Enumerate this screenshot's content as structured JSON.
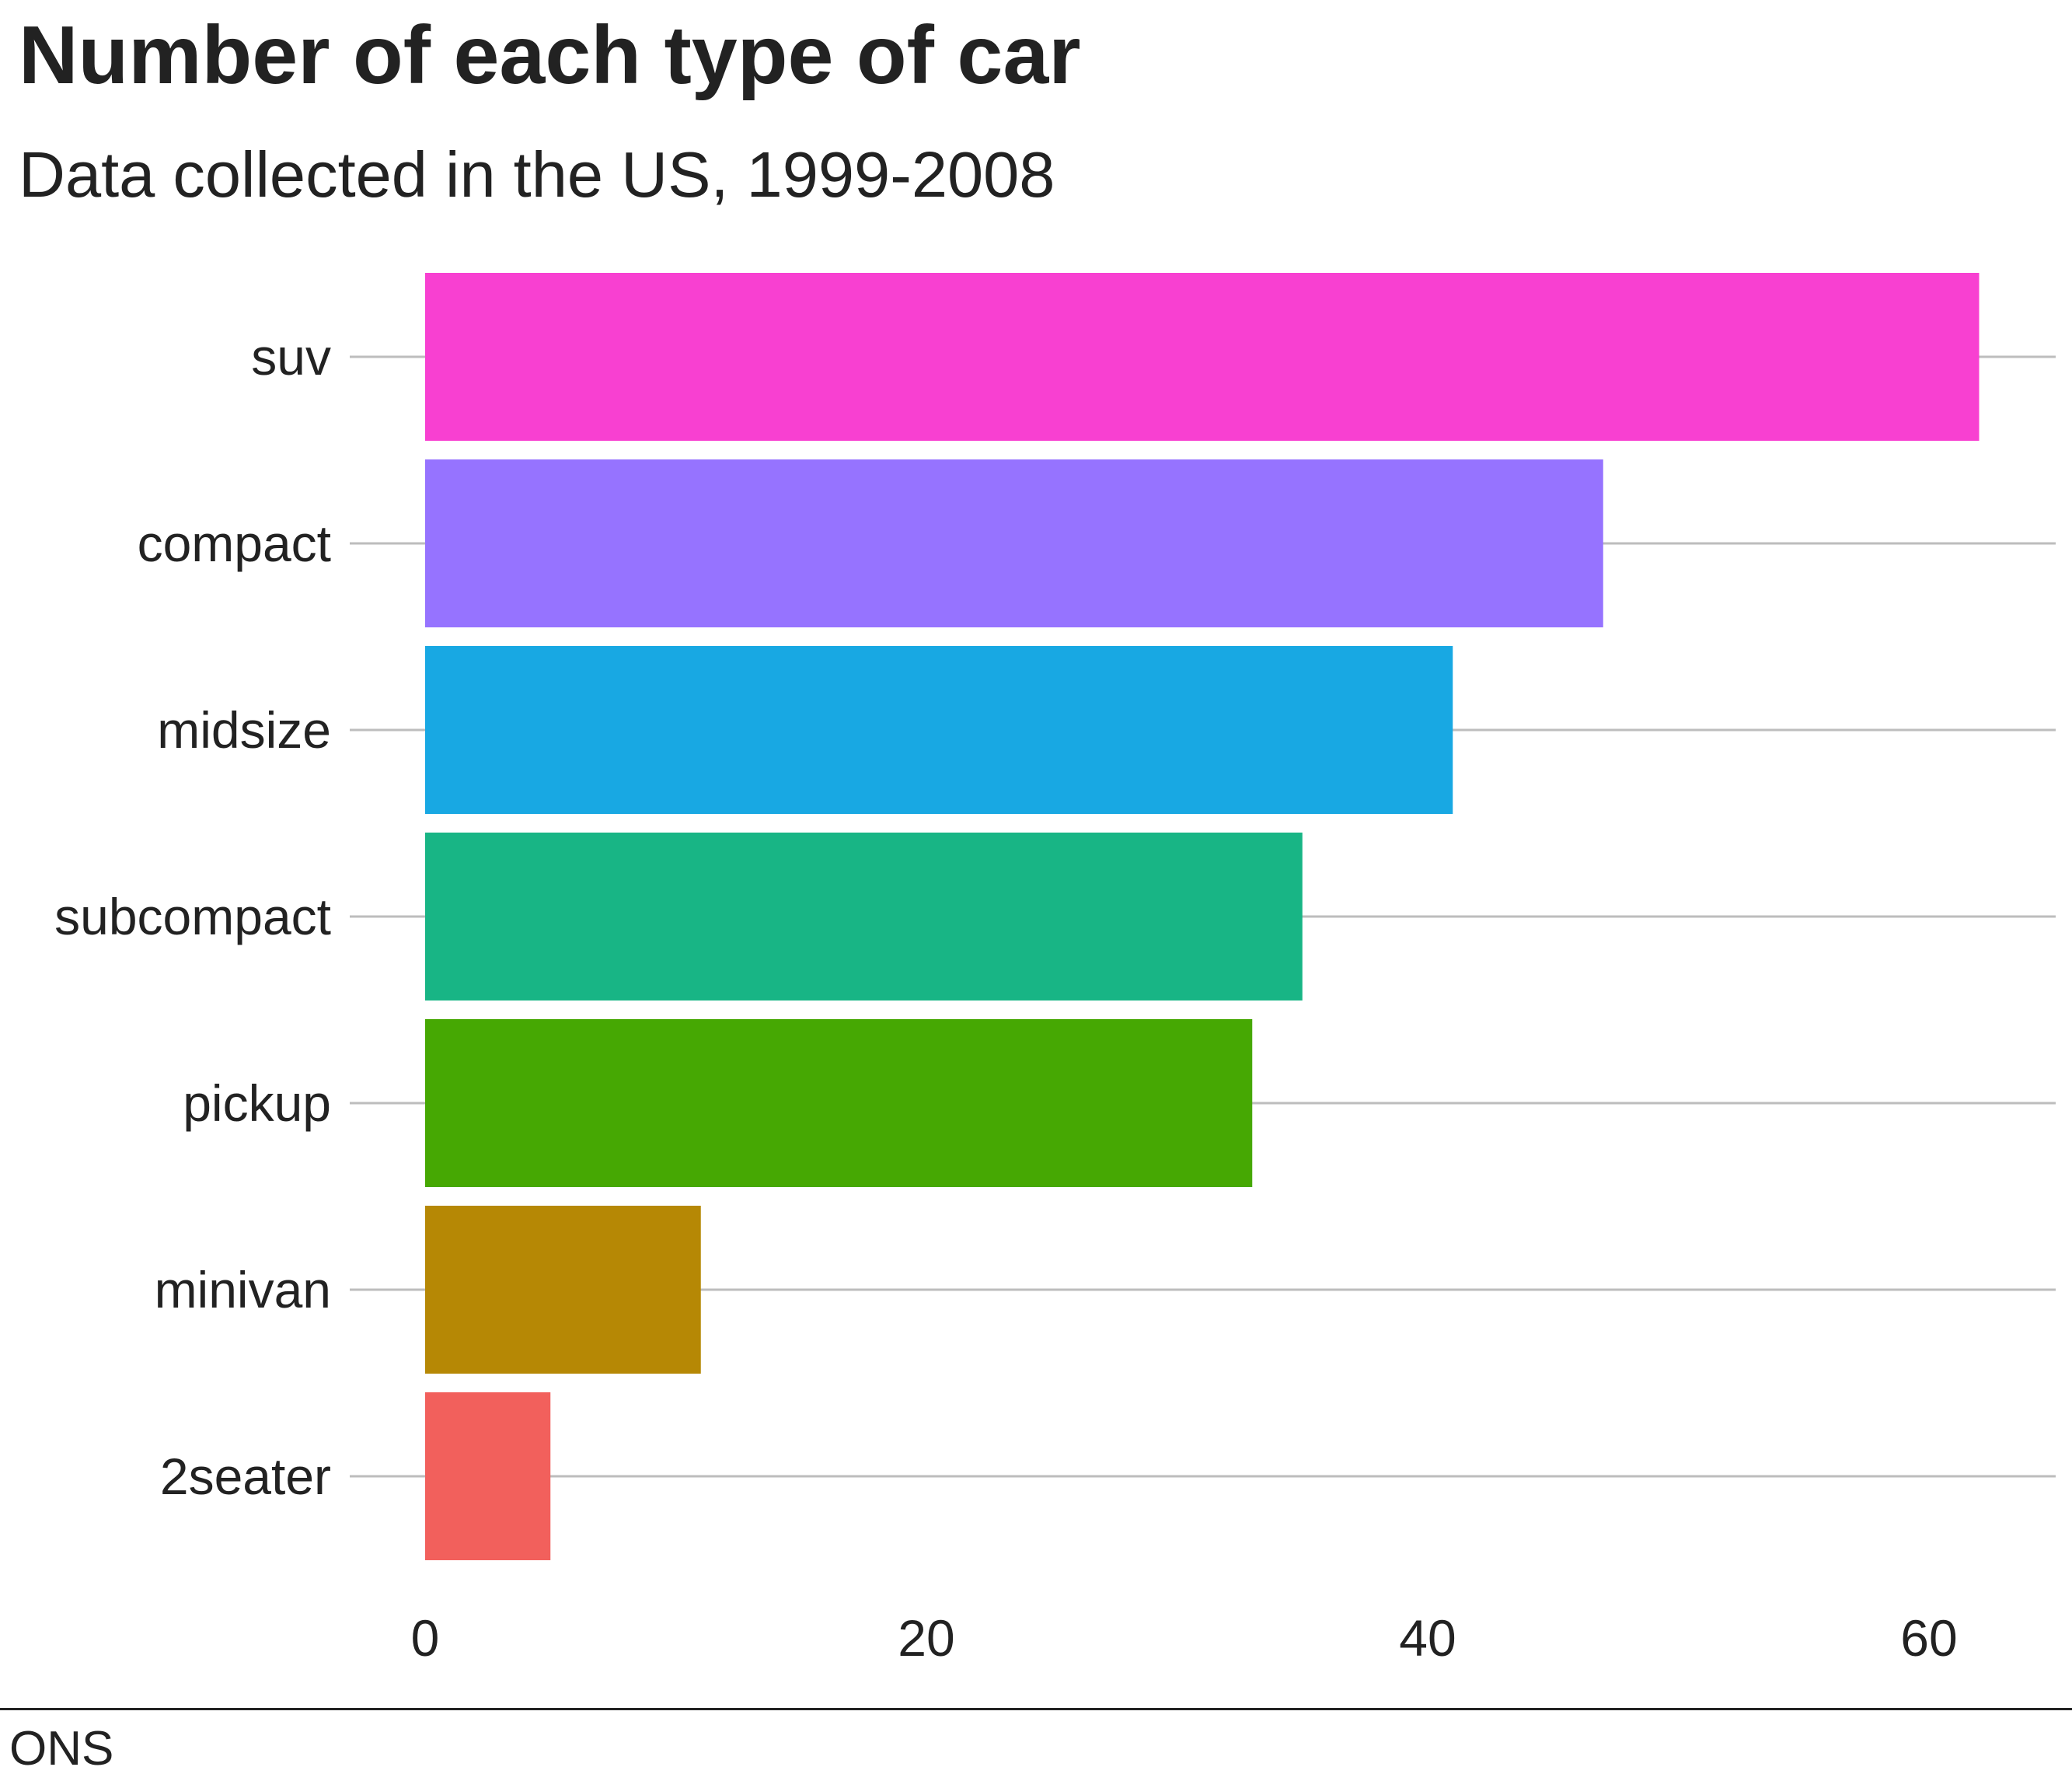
{
  "chart_data": {
    "type": "bar",
    "orientation": "horizontal",
    "title": "Number of each type of car",
    "subtitle": "Data collected in the US, 1999-2008",
    "source": "ONS",
    "categories": [
      "suv",
      "compact",
      "midsize",
      "subcompact",
      "pickup",
      "minivan",
      "2seater"
    ],
    "values": [
      62,
      47,
      41,
      35,
      33,
      11,
      5
    ],
    "colors": [
      "#F840D1",
      "#9673FF",
      "#18A8E3",
      "#18B585",
      "#46A803",
      "#B68805",
      "#F2605C"
    ],
    "xlim": [
      0,
      65
    ],
    "xticks": [
      0,
      20,
      40,
      60
    ],
    "xtick_labels": [
      "0",
      "20",
      "40",
      "60"
    ],
    "grid": "horizontal lines at categories",
    "legend": "none",
    "xlabel": "",
    "ylabel": ""
  }
}
